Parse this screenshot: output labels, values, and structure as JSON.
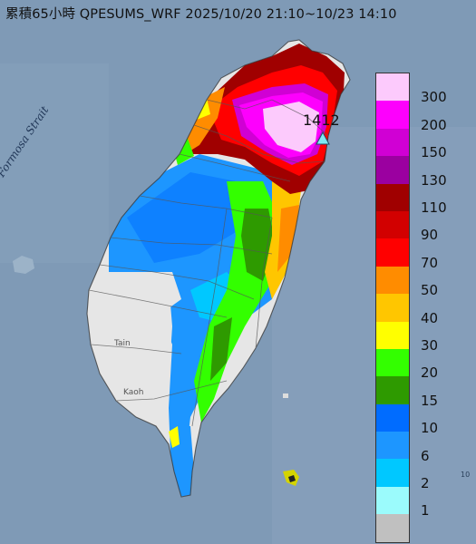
{
  "title": "累積65小時 QPESUMS_WRF 2025/10/20 21:10~10/23 14:10",
  "max_value_label": "1412",
  "sea_label": "Formosa Strait",
  "city_labels": {
    "tainan": "Tain",
    "kaohsiung": "Kaoh"
  },
  "legend": {
    "thresholds": [
      "300",
      "200",
      "150",
      "130",
      "110",
      "90",
      "70",
      "50",
      "40",
      "30",
      "20",
      "15",
      "10",
      "6",
      "2",
      "1"
    ],
    "colors": [
      "#fccafc",
      "#fd00fd",
      "#d000d4",
      "#9b00a0",
      "#a00000",
      "#d20000",
      "#ff0000",
      "#ff8c00",
      "#ffc600",
      "#ffff00",
      "#33ff00",
      "#2e9a00",
      "#006cff",
      "#1d96ff",
      "#00c8ff",
      "#9bfbfc",
      "#c0c0c0"
    ]
  },
  "colors": {
    "sea": "#7f9ab6",
    "land_no_rain": "#e6e6e6"
  }
}
